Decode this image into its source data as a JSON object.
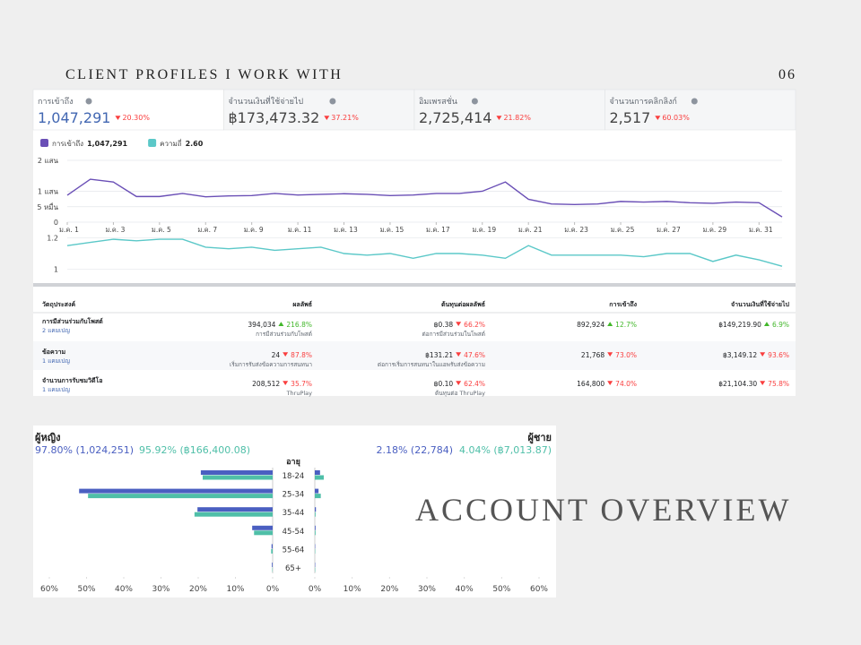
{
  "header": {
    "title": "CLIENT PROFILES I WORK WITH",
    "page": "06"
  },
  "overview": "ACCOUNT OVERVIEW",
  "metrics": [
    {
      "label": "การเข้าถึง",
      "value": "1,047,291",
      "change": "20.30%",
      "dir": "down"
    },
    {
      "label": "จำนวนเงินที่ใช้จ่ายไป",
      "value": "฿173,473.32",
      "change": "37.21%",
      "dir": "down"
    },
    {
      "label": "อิมเพรสชั่น",
      "value": "2,725,414",
      "change": "21.82%",
      "dir": "down"
    },
    {
      "label": "จำนวนการคลิกลิงก์",
      "value": "2,517",
      "change": "60.03%",
      "dir": "down"
    }
  ],
  "chart_data": [
    {
      "type": "line",
      "categories": [
        "ม.ค. 1",
        null,
        "ม.ค. 3",
        null,
        "ม.ค. 5",
        null,
        "ม.ค. 7",
        null,
        "ม.ค. 9",
        null,
        "ม.ค. 11",
        null,
        "ม.ค. 13",
        null,
        "ม.ค. 15",
        null,
        "ม.ค. 17",
        null,
        "ม.ค. 19",
        null,
        "ม.ค. 21",
        null,
        "ม.ค. 23",
        null,
        "ม.ค. 25",
        null,
        "ม.ค. 27",
        null,
        "ม.ค. 29",
        null,
        "ม.ค. 31",
        null
      ],
      "series": [
        {
          "name": "การเข้าถึง",
          "total": "1,047,291",
          "color": "#6a4fb6",
          "values": [
            87000,
            139000,
            130000,
            83000,
            83000,
            93000,
            82000,
            85000,
            86000,
            93000,
            88000,
            90000,
            92000,
            90000,
            86000,
            88000,
            93000,
            93000,
            100000,
            130000,
            74000,
            59000,
            57000,
            59000,
            67000,
            65000,
            67000,
            63000,
            61000,
            65000,
            63000,
            17000
          ]
        }
      ],
      "ylim": [
        0,
        200000
      ],
      "yticks": [
        {
          "value": 0,
          "label": "0"
        },
        {
          "value": 50000,
          "label": "5 หมื่น"
        },
        {
          "value": 100000,
          "label": "1 แสน"
        },
        {
          "value": 200000,
          "label": "2 แสน"
        }
      ],
      "grid": true
    },
    {
      "type": "line",
      "series": [
        {
          "name": "ความถี่",
          "total": "2.60",
          "color": "#5bc8c8",
          "values": [
            1.15,
            1.17,
            1.19,
            1.18,
            1.19,
            1.19,
            1.14,
            1.13,
            1.14,
            1.12,
            1.13,
            1.14,
            1.1,
            1.09,
            1.1,
            1.07,
            1.1,
            1.1,
            1.09,
            1.07,
            1.15,
            1.09,
            1.09,
            1.09,
            1.09,
            1.08,
            1.1,
            1.1,
            1.05,
            1.09,
            1.06,
            1.02
          ]
        }
      ],
      "ylim": [
        0.97,
        1.23
      ],
      "yticks": [
        1,
        1.2
      ],
      "grid": true
    },
    {
      "type": "bar",
      "orientation": "horizontal",
      "axis_label": "อายุ",
      "categories": [
        "18-24",
        "25-34",
        "35-44",
        "45-54",
        "55-64",
        "65+"
      ],
      "xlim": [
        0,
        60
      ],
      "xticks": [
        {
          "value": 60,
          "label": "60%"
        },
        {
          "value": 50,
          "label": "50%"
        },
        {
          "value": 40,
          "label": "40%"
        },
        {
          "value": 30,
          "label": "30%"
        },
        {
          "value": 20,
          "label": "20%"
        },
        {
          "value": 10,
          "label": "10%"
        },
        {
          "value": 0,
          "label": "0%"
        }
      ],
      "groups": [
        {
          "name": "ผู้หญิง",
          "side": "left",
          "stats": [
            "97.80% (1,024,251)",
            "95.92% (฿166,400.08)"
          ],
          "series": [
            {
              "color": "#4a5fc1",
              "values": [
                19.3,
                52,
                20.2,
                5.5,
                0.3,
                0.2
              ]
            },
            {
              "color": "#4fbfa8",
              "values": [
                18.8,
                49.6,
                21,
                5,
                0.4,
                0.1
              ]
            }
          ]
        },
        {
          "name": "ผู้ชาย",
          "side": "right",
          "stats": [
            "2.18% (22,784)",
            "4.04% (฿7,013.87)"
          ],
          "series": [
            {
              "color": "#4a5fc1",
              "values": [
                1.4,
                1,
                0.3,
                0.2,
                0.1,
                0.1
              ]
            },
            {
              "color": "#4fbfa8",
              "values": [
                2.4,
                1.6,
                0.2,
                0.2,
                0.1,
                0.1
              ]
            }
          ]
        }
      ]
    }
  ],
  "table": {
    "columns": [
      "วัตถุประสงค์",
      "ผลลัพธ์",
      "ต้นทุนต่อผลลัพธ์",
      "การเข้าถึง",
      "จำนวนเงินที่ใช้จ่ายไป"
    ],
    "rows": [
      {
        "objective": "การมีส่วนร่วมกับโพสต์",
        "campaigns": "2 แคมเปญ",
        "cells": [
          {
            "value": "394,034",
            "change": "216.8%",
            "dir": "up",
            "note": "การมีส่วนร่วมกับโพสต์"
          },
          {
            "value": "฿0.38",
            "change": "66.2%",
            "dir": "down",
            "note": "ต่อการมีส่วนร่วมในโพสต์"
          },
          {
            "value": "892,924",
            "change": "12.7%",
            "dir": "up"
          },
          {
            "value": "฿149,219.90",
            "change": "6.9%",
            "dir": "up"
          }
        ]
      },
      {
        "objective": "ข้อความ",
        "campaigns": "1 แคมเปญ",
        "cells": [
          {
            "value": "24",
            "change": "87.8%",
            "dir": "down",
            "note": "เริ่มการรับส่งข้อความการสนทนา"
          },
          {
            "value": "฿131.21",
            "change": "47.6%",
            "dir": "down",
            "note": "ต่อการเริ่มการสนทนาในแอพรับส่งข้อความ"
          },
          {
            "value": "21,768",
            "change": "73.0%",
            "dir": "down"
          },
          {
            "value": "฿3,149.12",
            "change": "93.6%",
            "dir": "down"
          }
        ]
      },
      {
        "objective": "จำนวนการรับชมวิดีโอ",
        "campaigns": "1 แคมเปญ",
        "cells": [
          {
            "value": "208,512",
            "change": "35.7%",
            "dir": "down",
            "note": "ThruPlay"
          },
          {
            "value": "฿0.10",
            "change": "62.4%",
            "dir": "down",
            "note": "ต้นทุนต่อ ThruPlay"
          },
          {
            "value": "164,800",
            "change": "74.0%",
            "dir": "down"
          },
          {
            "value": "฿21,104.30",
            "change": "75.8%",
            "dir": "down"
          }
        ]
      }
    ]
  }
}
